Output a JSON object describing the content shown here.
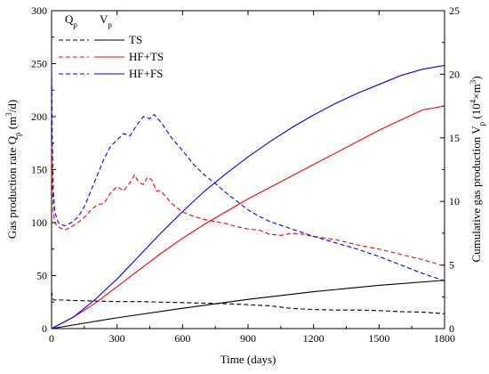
{
  "chart_data": {
    "type": "line",
    "xlabel": "Time (days)",
    "ylabel_left": "Gas production rate Q",
    "ylabel_left_sub": "p",
    "ylabel_left_unit": " (m",
    "ylabel_left_unit_sup": "3",
    "ylabel_left_unit_end": "/d)",
    "ylabel_right": "Cumulative gas production V",
    "ylabel_right_sub": "p",
    "ylabel_right_unit": " (10",
    "ylabel_right_unit_sup": "4",
    "ylabel_right_unit_mid": "×m",
    "ylabel_right_unit_sup2": "3",
    "ylabel_right_unit_end": ")",
    "xlim": [
      0,
      1800
    ],
    "ylim_left": [
      0,
      300
    ],
    "ylim_right": [
      0,
      25
    ],
    "xticks": [
      0,
      300,
      600,
      900,
      1200,
      1500,
      1800
    ],
    "yticks_left": [
      0,
      50,
      100,
      150,
      200,
      250,
      300
    ],
    "yticks_right": [
      0,
      5,
      10,
      15,
      20,
      25
    ],
    "grid": false,
    "legend": {
      "position": "top-left",
      "header_q": "Q",
      "header_q_sub": "p",
      "header_v": "V",
      "header_v_sub": "p",
      "entries": [
        "TS",
        "HF+TS",
        "HF+FS"
      ]
    },
    "series": [
      {
        "name": "TS",
        "quantity": "Qp",
        "axis": "left",
        "color": "#000000",
        "style": "dashed",
        "x": [
          0,
          5,
          10,
          20,
          50,
          100,
          200,
          300,
          400,
          500,
          600,
          700,
          800,
          900,
          1000,
          1100,
          1200,
          1300,
          1400,
          1500,
          1600,
          1700,
          1800
        ],
        "y": [
          35,
          28,
          27,
          27,
          27,
          26.5,
          26,
          25.5,
          25.5,
          25,
          24.5,
          24,
          23.5,
          22.5,
          21.5,
          19,
          18,
          17.5,
          17.5,
          17,
          16,
          15.5,
          14
        ]
      },
      {
        "name": "HF+TS",
        "quantity": "Qp",
        "axis": "left",
        "color": "#ff0000",
        "style": "dashed",
        "x": [
          0,
          3,
          8,
          15,
          30,
          60,
          90,
          120,
          150,
          180,
          210,
          240,
          270,
          300,
          330,
          360,
          380,
          400,
          420,
          440,
          460,
          480,
          500,
          550,
          600,
          650,
          700,
          750,
          800,
          850,
          900,
          950,
          1000,
          1050,
          1100,
          1150,
          1200,
          1300,
          1400,
          1500,
          1600,
          1700,
          1800
        ],
        "y": [
          175,
          140,
          110,
          100,
          96,
          93,
          96,
          100,
          105,
          112,
          117,
          118,
          128,
          134,
          130,
          138,
          145,
          138,
          136,
          143,
          140,
          130,
          130,
          118,
          110,
          106,
          103,
          101,
          99,
          96,
          94,
          93,
          89,
          88,
          90,
          89,
          87,
          84,
          79,
          75,
          70,
          65,
          59
        ]
      },
      {
        "name": "HF+FS",
        "quantity": "Qp",
        "axis": "left",
        "color": "#0000ff",
        "style": "dashed",
        "x": [
          0,
          3,
          8,
          15,
          30,
          60,
          90,
          120,
          150,
          180,
          210,
          240,
          270,
          300,
          330,
          360,
          390,
          420,
          450,
          470,
          500,
          550,
          600,
          650,
          700,
          750,
          800,
          850,
          900,
          950,
          1000,
          1100,
          1200,
          1300,
          1400,
          1500,
          1600,
          1700,
          1800
        ],
        "y": [
          250,
          180,
          130,
          110,
          100,
          97,
          100,
          105,
          115,
          130,
          145,
          160,
          172,
          178,
          184,
          182,
          192,
          200,
          198,
          202,
          195,
          180,
          168,
          155,
          145,
          137,
          128,
          120,
          112,
          106,
          101,
          94,
          87,
          81,
          75,
          68,
          60,
          52,
          45
        ]
      },
      {
        "name": "TS",
        "quantity": "Vp",
        "axis": "right",
        "color": "#000000",
        "style": "solid",
        "x": [
          0,
          300,
          600,
          900,
          1200,
          1500,
          1800
        ],
        "y": [
          0,
          0.85,
          1.6,
          2.3,
          2.9,
          3.4,
          3.8
        ]
      },
      {
        "name": "HF+TS",
        "quantity": "Vp",
        "axis": "right",
        "color": "#ff0000",
        "style": "solid",
        "x": [
          0,
          100,
          200,
          300,
          400,
          500,
          600,
          700,
          800,
          900,
          1000,
          1100,
          1200,
          1300,
          1400,
          1500,
          1600,
          1700,
          1800
        ],
        "y": [
          0,
          0.9,
          2.0,
          3.3,
          4.6,
          5.9,
          7.1,
          8.2,
          9.2,
          10.2,
          11.1,
          12.0,
          12.9,
          13.8,
          14.7,
          15.6,
          16.4,
          17.2,
          17.5
        ]
      },
      {
        "name": "HF+FS",
        "quantity": "Vp",
        "axis": "right",
        "color": "#0000ff",
        "style": "solid",
        "x": [
          0,
          100,
          200,
          300,
          400,
          500,
          600,
          700,
          800,
          900,
          1000,
          1100,
          1200,
          1300,
          1400,
          1500,
          1600,
          1700,
          1800
        ],
        "y": [
          0,
          0.9,
          2.3,
          3.9,
          5.7,
          7.5,
          9.2,
          10.8,
          12.2,
          13.5,
          14.7,
          15.8,
          16.8,
          17.7,
          18.5,
          19.2,
          19.9,
          20.4,
          20.7
        ]
      }
    ]
  }
}
